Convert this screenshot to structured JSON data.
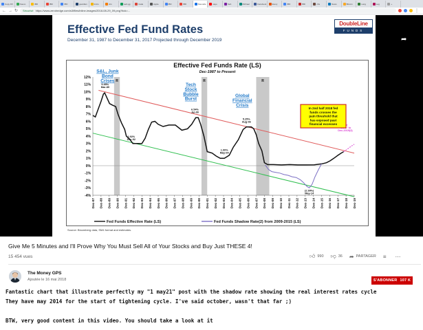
{
  "browser": {
    "tabs": [
      {
        "label": "Copy DV",
        "color": "#4285f4"
      },
      {
        "label": "Nuevo",
        "color": "#34a853"
      },
      {
        "label": "IBD",
        "color": "#fbbc05"
      },
      {
        "label": "IBD",
        "color": "#ea4335"
      },
      {
        "label": "IBD",
        "color": "#4285f4"
      },
      {
        "label": "guardian",
        "color": "#1e3f6b"
      },
      {
        "label": "Inicio",
        "color": "#f4b400"
      },
      {
        "label": "Ars",
        "color": "#f57c00"
      },
      {
        "label": "web.gg",
        "color": "#0f9d58"
      },
      {
        "label": "trade",
        "color": "#db4437"
      },
      {
        "label": "Apple",
        "color": "#555555"
      },
      {
        "label": "IBD",
        "color": "#4285f4"
      },
      {
        "label": "IBD",
        "color": "#ea4335"
      },
      {
        "label": "Nouvelle",
        "color": "#1a73e8",
        "active": true
      },
      {
        "label": "sayo",
        "color": "#ff0000"
      },
      {
        "label": "Seb",
        "color": "#7b1fa2"
      },
      {
        "label": "Michael",
        "color": "#00897b"
      },
      {
        "label": "Facebook",
        "color": "#3b5998"
      },
      {
        "label": "Every",
        "color": "#e65100"
      },
      {
        "label": "IBD",
        "color": "#4285f4"
      },
      {
        "label": "IBD",
        "color": "#c62828"
      },
      {
        "label": "cbs",
        "color": "#6d4c41"
      },
      {
        "label": "News",
        "color": "#0277bd"
      },
      {
        "label": "Bitcoin",
        "color": "#f9a825"
      },
      {
        "label": "Lang",
        "color": "#2e7d32"
      },
      {
        "label": "Leg",
        "color": "#ad1457"
      },
      {
        "label": "+",
        "color": "#9e9e9e"
      }
    ],
    "secure_label": "Sécurisé",
    "url": "https://www.zerohedge.com/s3/files/inline-images/2018-08-29_09.png?itok=..."
  },
  "slide": {
    "title": "Effective Fed Fund Rates",
    "subtitle": "December 31, 1987 to December 31, 2017 Projected through December 2019",
    "logo_top": "DoubleLine",
    "logo_bottom": "FUNDS",
    "source": "Source: Bloomberg data, SM4 format and estimates."
  },
  "chart_data": {
    "type": "line",
    "title": "Effective Fed Funds Rate (LS)",
    "subtitle": "Dec-1987 to Present",
    "ylim": [
      -4,
      12
    ],
    "yticks": [
      "12%",
      "11%",
      "10%",
      "9%",
      "8%",
      "7%",
      "6%",
      "5%",
      "4%",
      "3%",
      "2%",
      "1%",
      "0%",
      "-1%",
      "-2%",
      "-3%",
      "-4%"
    ],
    "xticks": [
      "Dec-87",
      "Dec-88",
      "Dec-89",
      "Dec-90",
      "Dec-91",
      "Dec-92",
      "Dec-93",
      "Dec-94",
      "Dec-95",
      "Dec-96",
      "Dec-97",
      "Dec-98",
      "Dec-99",
      "Dec-00",
      "Dec-01",
      "Dec-02",
      "Dec-03",
      "Dec-04",
      "Dec-05",
      "Dec-06",
      "Dec-07",
      "Dec-08",
      "Dec-09",
      "Dec-10",
      "Dec-11",
      "Dec-12",
      "Dec-13",
      "Dec-14",
      "Dec-15",
      "Dec-16",
      "Dec-17",
      "Dec-18",
      "Dec-19"
    ],
    "x_start": 1987.9,
    "x_end": 2019.9,
    "recessions": [
      {
        "start": 1990.5,
        "end": 1991.2
      },
      {
        "start": 2001.2,
        "end": 2001.9
      },
      {
        "start": 2007.9,
        "end": 2009.5
      }
    ],
    "recession_label": "R",
    "series": [
      {
        "name": "Fed Funds Effective Rate (LS)",
        "color": "#111111",
        "points": [
          [
            1987.9,
            6.8
          ],
          [
            1988.2,
            6.6
          ],
          [
            1988.6,
            7.8
          ],
          [
            1988.9,
            8.7
          ],
          [
            1989.2,
            9.7
          ],
          [
            1989.35,
            9.85
          ],
          [
            1989.7,
            9.0
          ],
          [
            1989.95,
            8.4
          ],
          [
            1990.3,
            8.2
          ],
          [
            1990.7,
            8.0
          ],
          [
            1991.0,
            6.9
          ],
          [
            1991.4,
            5.8
          ],
          [
            1991.8,
            4.9
          ],
          [
            1992.0,
            4.0
          ],
          [
            1992.4,
            3.6
          ],
          [
            1992.8,
            3.0
          ],
          [
            1993.3,
            3.0
          ],
          [
            1993.9,
            3.0
          ],
          [
            1994.3,
            3.7
          ],
          [
            1994.7,
            4.9
          ],
          [
            1995.1,
            5.9
          ],
          [
            1995.5,
            6.0
          ],
          [
            1995.9,
            5.6
          ],
          [
            1996.5,
            5.3
          ],
          [
            1997.2,
            5.5
          ],
          [
            1998.0,
            5.5
          ],
          [
            1998.8,
            4.8
          ],
          [
            1999.5,
            5.0
          ],
          [
            2000.0,
            5.6
          ],
          [
            2000.5,
            6.5
          ],
          [
            2000.8,
            6.5
          ],
          [
            2001.1,
            5.6
          ],
          [
            2001.5,
            4.0
          ],
          [
            2001.9,
            1.9
          ],
          [
            2002.5,
            1.7
          ],
          [
            2003.0,
            1.3
          ],
          [
            2003.5,
            1.0
          ],
          [
            2004.0,
            1.0
          ],
          [
            2004.6,
            1.4
          ],
          [
            2005.1,
            2.5
          ],
          [
            2005.7,
            3.5
          ],
          [
            2006.3,
            4.9
          ],
          [
            2006.7,
            5.25
          ],
          [
            2007.3,
            5.25
          ],
          [
            2007.6,
            5.0
          ],
          [
            2007.9,
            4.2
          ],
          [
            2008.2,
            3.0
          ],
          [
            2008.6,
            2.0
          ],
          [
            2008.9,
            0.4
          ],
          [
            2009.3,
            0.15
          ],
          [
            2010.0,
            0.15
          ],
          [
            2011.0,
            0.1
          ],
          [
            2012.0,
            0.15
          ],
          [
            2013.0,
            0.1
          ],
          [
            2014.0,
            0.1
          ],
          [
            2015.0,
            0.12
          ],
          [
            2015.95,
            0.25
          ],
          [
            2016.5,
            0.4
          ],
          [
            2016.95,
            0.66
          ],
          [
            2017.4,
            1.0
          ],
          [
            2017.9,
            1.4
          ],
          [
            2018.3,
            1.7
          ],
          [
            2018.6,
            1.9
          ]
        ]
      },
      {
        "name": "Fed Funds Shadow Rate(2) from 2009-2015 (LS)",
        "color": "#7b6fc4",
        "points": [
          [
            2009.0,
            0.1
          ],
          [
            2009.4,
            -0.5
          ],
          [
            2009.8,
            -0.8
          ],
          [
            2010.3,
            -0.9
          ],
          [
            2010.8,
            -1.0
          ],
          [
            2011.3,
            -1.2
          ],
          [
            2011.8,
            -1.3
          ],
          [
            2012.3,
            -1.5
          ],
          [
            2012.8,
            -1.6
          ],
          [
            2013.3,
            -1.9
          ],
          [
            2013.7,
            -2.3
          ],
          [
            2014.1,
            -2.8
          ],
          [
            2014.4,
            -3.0
          ],
          [
            2014.75,
            -2.5
          ],
          [
            2015.1,
            -1.5
          ],
          [
            2015.5,
            -0.6
          ],
          [
            2015.9,
            0.25
          ]
        ]
      },
      {
        "name": "Fed Dots projection",
        "color": "#d93fd3",
        "points": [
          [
            2018.6,
            1.9
          ],
          [
            2019.0,
            2.2
          ],
          [
            2019.5,
            2.6
          ],
          [
            2019.9,
            2.9
          ]
        ]
      }
    ],
    "trend_lines": [
      {
        "name": "upper-trend",
        "color": "#e05a5a",
        "points": [
          [
            1988.6,
            10.2
          ],
          [
            2019.9,
            1.7
          ]
        ]
      },
      {
        "name": "lower-trend",
        "color": "#2fbf4f",
        "points": [
          [
            1987.9,
            4.4
          ],
          [
            2019.9,
            -4.2
          ]
        ]
      }
    ],
    "annotations": [
      {
        "text": "S&L, Junk Bond Crises",
        "lines": [
          "S&L, Junk",
          "Bond",
          "Crises"
        ],
        "color": "#1f78c8",
        "x": 1989.7,
        "y": 12.6
      },
      {
        "text": "Tech Stock Bubble Burst",
        "lines": [
          "Tech",
          "Stock",
          "Bubble",
          "Burst"
        ],
        "color": "#1f78c8",
        "x": 1999.9,
        "y": 10.8
      },
      {
        "text": "Global Financial Crisis",
        "lines": [
          "Global",
          "Financial",
          "Crisis"
        ],
        "color": "#1f78c8",
        "x": 2006.2,
        "y": 9.3
      },
      {
        "text": "9.85% Mar-89",
        "lines": [
          "9.85%",
          "Mar-89"
        ],
        "color": "#111111",
        "x": 1989.4,
        "y": 10.9
      },
      {
        "text": "2.92% Dec-92",
        "lines": [
          "2.92%",
          "Dec-92"
        ],
        "color": "#111111",
        "x": 1992.6,
        "y": 3.8
      },
      {
        "text": "6.54% Jul-00",
        "lines": [
          "6.54%",
          "Jul-00"
        ],
        "color": "#111111",
        "x": 2000.4,
        "y": 7.5
      },
      {
        "text": "1.00% May-04",
        "lines": [
          "1.00%",
          "May-04"
        ],
        "color": "#111111",
        "x": 2004.0,
        "y": 2.0
      },
      {
        "text": "5.25% Aug-06",
        "lines": [
          "5.25%",
          "Aug-06"
        ],
        "color": "#111111",
        "x": 2006.7,
        "y": 6.2
      },
      {
        "text": "(2.99%) May-14",
        "lines": [
          "(2.99%)",
          "May-14"
        ],
        "color": "#111111",
        "x": 2014.4,
        "y": -3.5
      },
      {
        "text": "Fed “Dots” to Dec-2019(3)",
        "lines": [
          "Fed",
          "“Dots” to",
          "Dec-2019(3)"
        ],
        "color": "#d93fd3",
        "x": 2018.8,
        "y": 5.4
      }
    ],
    "callout": "In 2nd half 2018 fed funds crosses the pain threshold that has exposed past financial excesses",
    "callout_lines": [
      "In 2nd half 2018 fed",
      "funds crosses the",
      "pain threshold that",
      "has exposed past",
      "financial excesses"
    ],
    "legend": [
      "Fed Funds Effective Rate (LS)",
      "Fed Funds Shadow Rate(2) from 2009-2015 (LS)"
    ]
  },
  "video": {
    "title": "Give Me 5 Minutes and I'll Prove Why You Must Sell All of Your Stocks and Buy Just THESE 4!",
    "views": "15 454 vues",
    "likes": "990",
    "dislikes": "36",
    "share_label": "PARTAGER"
  },
  "channel": {
    "name": "The Money GPS",
    "published": "Ajoutée le 16 mai 2018",
    "subscribe_label": "S'ABONNER",
    "subscriber_count": "107 K"
  },
  "comment": {
    "lines": [
      "Fantastic chart that illustrate perfectly my \"1 may21\" post with the shadow rate showing the real interest rates cycle",
      "They have may 2014 for the start of tightening cycle. I've said october, wasn't that far ;)",
      "",
      "BTW, very good content in this video. You should take a look at it"
    ]
  },
  "colors": {
    "accent": "#cc0000",
    "slide_navy": "#1e3f6b"
  }
}
